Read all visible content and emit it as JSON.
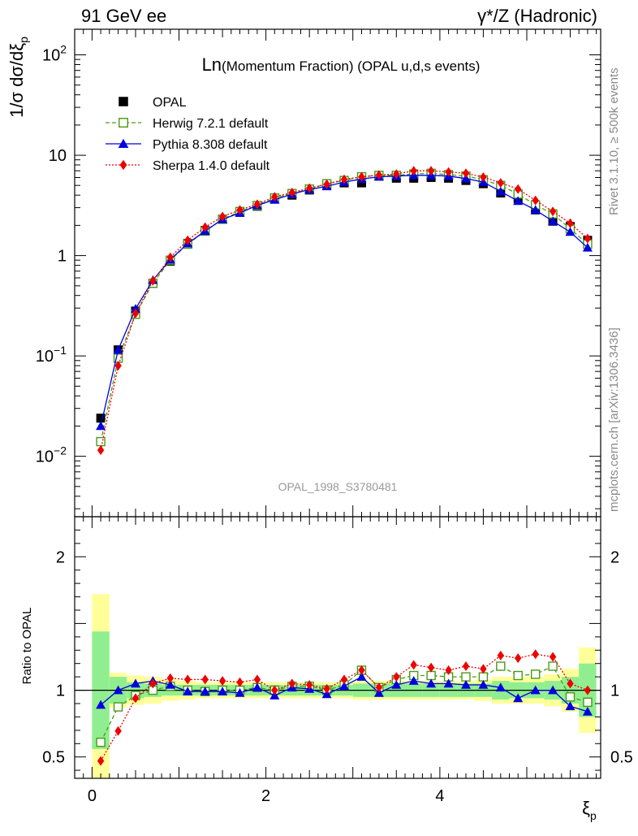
{
  "chart_data": {
    "type": "scatter",
    "top_left_label": "91 GeV ee",
    "top_right_label": "γ*/Z (Hadronic)",
    "title": "Ln(Momentum Fraction) (OPAL u,d,s events)",
    "title_prefix": "Ln",
    "title_rest": "(Momentum Fraction) (OPAL u,d,s events)",
    "ylabel": "1/σ dσ/dξp",
    "ylabel_main": "1/σ dσ/dξ",
    "ylabel_sub": "p",
    "ratio_ylabel": "Ratio to OPAL",
    "xlabel": "ξp",
    "xlabel_main": "ξ",
    "xlabel_sub": "p",
    "analysis_id": "OPAL_1998_S3780481",
    "rivet_label": "Rivet 3.1.10, ≥ 500k events",
    "mcplots_label": "mcplots.cern.ch [arXiv:1306.3436]",
    "xlim": [
      -0.2,
      5.85
    ],
    "ylim_main": [
      0.0025,
      180
    ],
    "ylim_ratio": [
      0.34,
      2.3
    ],
    "yscale_main": "log",
    "x_tick_labels": [
      "0",
      "2",
      "4"
    ],
    "x_tick_values": [
      0,
      2,
      4
    ],
    "main_y_tick_labels": [
      {
        "base": "10",
        "exp": "2",
        "value": 100
      },
      {
        "base": "10",
        "exp": "",
        "value": 10
      },
      {
        "base": "1",
        "exp": "",
        "value": 1
      },
      {
        "base": "10",
        "exp": "−1",
        "value": 0.1
      },
      {
        "base": "10",
        "exp": "−2",
        "value": 0.01
      }
    ],
    "ratio_y_tick_labels": [
      "0.5",
      "1",
      "2"
    ],
    "ratio_y_tick_values": [
      0.5,
      1,
      2
    ],
    "legend_position": "top-left",
    "x": [
      0.1,
      0.3,
      0.5,
      0.7,
      0.9,
      1.1,
      1.3,
      1.5,
      1.7,
      1.9,
      2.1,
      2.3,
      2.5,
      2.7,
      2.9,
      3.1,
      3.3,
      3.5,
      3.7,
      3.9,
      4.1,
      4.3,
      4.5,
      4.7,
      4.9,
      5.1,
      5.3,
      5.5,
      5.7
    ],
    "series": [
      {
        "name": "OPAL",
        "legend": "OPAL",
        "color": "#000000",
        "marker": "square",
        "values": [
          0.024,
          0.115,
          0.28,
          0.53,
          0.88,
          1.32,
          1.78,
          2.3,
          2.7,
          3.1,
          3.7,
          4.0,
          4.5,
          5.0,
          5.3,
          5.3,
          6.2,
          5.9,
          5.9,
          6.0,
          5.9,
          5.6,
          5.2,
          4.2,
          3.7,
          2.85,
          2.2,
          1.95,
          1.42
        ]
      },
      {
        "name": "Herwig 7.2.1 default",
        "legend": "Herwig 7.2.1 default",
        "color": "#4a9a17",
        "marker": "open-square",
        "line": "dashed",
        "values": [
          0.014,
          0.095,
          0.26,
          0.53,
          0.9,
          1.3,
          1.75,
          2.3,
          2.75,
          3.15,
          3.75,
          4.15,
          4.6,
          5.2,
          5.6,
          6.1,
          6.3,
          6.3,
          6.5,
          6.6,
          6.4,
          6.2,
          5.7,
          5.0,
          4.1,
          3.2,
          2.6,
          1.85,
          1.3
        ]
      },
      {
        "name": "Pythia 8.308 default",
        "legend": "Pythia 8.308 default",
        "color": "#0000dd",
        "marker": "triangle",
        "line": "solid",
        "values": [
          0.02,
          0.115,
          0.295,
          0.57,
          0.91,
          1.32,
          1.76,
          2.3,
          2.66,
          3.17,
          3.6,
          4.1,
          4.55,
          4.9,
          5.4,
          5.8,
          6.1,
          6.2,
          6.3,
          6.3,
          6.2,
          5.85,
          5.4,
          4.35,
          3.5,
          2.85,
          2.2,
          1.72,
          1.2
        ]
      },
      {
        "name": "Sherpa 1.4.0 default",
        "legend": "Sherpa 1.4.0 default",
        "color": "#ee0000",
        "marker": "diamond",
        "line": "dotted",
        "values": [
          0.0115,
          0.08,
          0.265,
          0.56,
          0.96,
          1.42,
          1.92,
          2.45,
          2.85,
          3.25,
          3.85,
          4.25,
          4.7,
          5.15,
          5.75,
          6.1,
          6.35,
          6.5,
          7.0,
          7.0,
          6.8,
          6.6,
          6.05,
          5.3,
          4.6,
          3.55,
          2.75,
          2.1,
          1.48
        ]
      }
    ],
    "ratio_series": [
      {
        "name": "Herwig 7.2.1 default",
        "values": [
          0.61,
          0.875,
          0.96,
          1.0,
          1.03,
          1.0,
          0.99,
          1.0,
          1.0,
          1.02,
          1.0,
          1.03,
          1.03,
          1.0,
          1.04,
          1.15,
          1.02,
          1.08,
          1.11,
          1.11,
          1.1,
          1.1,
          1.1,
          1.18,
          1.11,
          1.12,
          1.18,
          0.95,
          0.91
        ]
      },
      {
        "name": "Pythia 8.308 default",
        "values": [
          0.89,
          1.0,
          1.05,
          1.07,
          1.04,
          0.99,
          0.99,
          0.99,
          0.98,
          1.02,
          0.96,
          1.02,
          1.01,
          0.97,
          1.03,
          1.1,
          0.98,
          1.04,
          1.07,
          1.05,
          1.05,
          1.04,
          1.04,
          1.02,
          0.94,
          1.0,
          1.0,
          0.88,
          0.84
        ]
      },
      {
        "name": "Sherpa 1.4.0 default",
        "values": [
          0.47,
          0.695,
          0.94,
          1.05,
          1.09,
          1.08,
          1.08,
          1.07,
          1.06,
          1.08,
          1.0,
          1.05,
          1.04,
          1.01,
          1.08,
          1.15,
          1.02,
          1.1,
          1.19,
          1.17,
          1.15,
          1.18,
          1.16,
          1.26,
          1.24,
          1.27,
          1.25,
          1.05,
          1.0
        ]
      }
    ],
    "ratio_band_inner": [
      0.44,
      0.1,
      0.06,
      0.05,
      0.04,
      0.04,
      0.04,
      0.04,
      0.04,
      0.04,
      0.04,
      0.04,
      0.04,
      0.04,
      0.04,
      0.05,
      0.05,
      0.05,
      0.05,
      0.05,
      0.05,
      0.05,
      0.05,
      0.07,
      0.06,
      0.06,
      0.07,
      0.1,
      0.2
    ],
    "ratio_band_outer": [
      0.72,
      0.13,
      0.11,
      0.1,
      0.08,
      0.07,
      0.06,
      0.06,
      0.06,
      0.06,
      0.06,
      0.06,
      0.06,
      0.06,
      0.06,
      0.07,
      0.07,
      0.07,
      0.07,
      0.07,
      0.07,
      0.07,
      0.08,
      0.1,
      0.1,
      0.1,
      0.12,
      0.16,
      0.32
    ]
  }
}
